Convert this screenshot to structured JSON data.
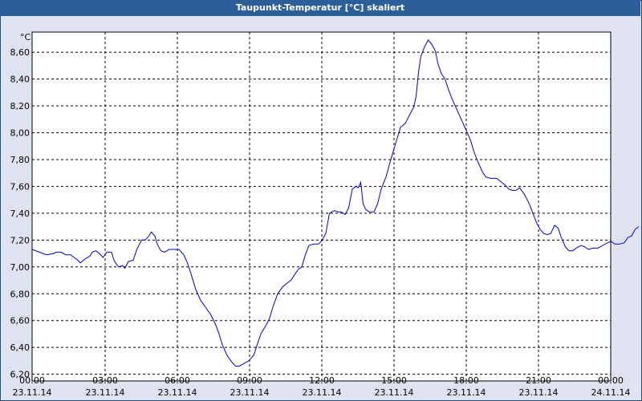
{
  "window": {
    "title": "Taupunkt-Temperatur [°C] skaliert"
  },
  "chart_data": {
    "type": "line",
    "title": "Taupunkt-Temperatur [°C] skaliert",
    "ylabel": "°C",
    "xlabel": "",
    "ylim": [
      6.15,
      8.75
    ],
    "xlim": [
      0,
      24
    ],
    "grid": true,
    "line_color": "#0000cc",
    "y_ticks": [
      "6,20",
      "6,40",
      "6,60",
      "6,80",
      "7,00",
      "7,20",
      "7,40",
      "7,60",
      "7,80",
      "8,00",
      "8,20",
      "8,40",
      "8,60"
    ],
    "y_tick_values": [
      6.2,
      6.4,
      6.6,
      6.8,
      7.0,
      7.2,
      7.4,
      7.6,
      7.8,
      8.0,
      8.2,
      8.4,
      8.6
    ],
    "x_ticks": [
      {
        "time": "00:00",
        "date": "23.11.14",
        "h": 0
      },
      {
        "time": "03:00",
        "date": "23.11.14",
        "h": 3
      },
      {
        "time": "06:00",
        "date": "23.11.14",
        "h": 6
      },
      {
        "time": "09:00",
        "date": "23.11.14",
        "h": 9
      },
      {
        "time": "12:00",
        "date": "23.11.14",
        "h": 12
      },
      {
        "time": "15:00",
        "date": "23.11.14",
        "h": 15
      },
      {
        "time": "18:00",
        "date": "23.11.14",
        "h": 18
      },
      {
        "time": "21:00",
        "date": "23.11.14",
        "h": 21
      },
      {
        "time": "00:00",
        "date": "24.11.14",
        "h": 24
      }
    ],
    "series": [
      {
        "points": [
          [
            0.0,
            7.13
          ],
          [
            0.3,
            7.11
          ],
          [
            0.6,
            7.09
          ],
          [
            0.9,
            7.1
          ],
          [
            1.0,
            7.11
          ],
          [
            1.2,
            7.11
          ],
          [
            1.4,
            7.09
          ],
          [
            1.6,
            7.09
          ],
          [
            1.75,
            7.07
          ],
          [
            1.9,
            7.05
          ],
          [
            2.0,
            7.03
          ],
          [
            2.2,
            7.06
          ],
          [
            2.4,
            7.08
          ],
          [
            2.5,
            7.11
          ],
          [
            2.65,
            7.12
          ],
          [
            2.8,
            7.1
          ],
          [
            2.95,
            7.07
          ],
          [
            3.1,
            7.11
          ],
          [
            3.3,
            7.11
          ],
          [
            3.4,
            7.05
          ],
          [
            3.5,
            7.02
          ],
          [
            3.6,
            7.0
          ],
          [
            3.75,
            7.01
          ],
          [
            3.85,
            6.99
          ],
          [
            4.0,
            7.04
          ],
          [
            4.2,
            7.05
          ],
          [
            4.35,
            7.13
          ],
          [
            4.55,
            7.2
          ],
          [
            4.7,
            7.2
          ],
          [
            4.85,
            7.23
          ],
          [
            4.95,
            7.26
          ],
          [
            5.1,
            7.23
          ],
          [
            5.2,
            7.17
          ],
          [
            5.35,
            7.12
          ],
          [
            5.5,
            7.11
          ],
          [
            5.7,
            7.13
          ],
          [
            5.9,
            7.13
          ],
          [
            6.1,
            7.13
          ],
          [
            6.3,
            7.09
          ],
          [
            6.45,
            7.03
          ],
          [
            6.6,
            6.95
          ],
          [
            6.8,
            6.83
          ],
          [
            7.0,
            6.75
          ],
          [
            7.2,
            6.7
          ],
          [
            7.4,
            6.65
          ],
          [
            7.6,
            6.58
          ],
          [
            7.75,
            6.51
          ],
          [
            7.9,
            6.42
          ],
          [
            8.1,
            6.34
          ],
          [
            8.3,
            6.29
          ],
          [
            8.45,
            6.26
          ],
          [
            8.6,
            6.26
          ],
          [
            8.8,
            6.28
          ],
          [
            9.0,
            6.3
          ],
          [
            9.2,
            6.34
          ],
          [
            9.35,
            6.42
          ],
          [
            9.5,
            6.5
          ],
          [
            9.7,
            6.56
          ],
          [
            9.85,
            6.61
          ],
          [
            10.0,
            6.7
          ],
          [
            10.2,
            6.8
          ],
          [
            10.4,
            6.85
          ],
          [
            10.6,
            6.88
          ],
          [
            10.75,
            6.9
          ],
          [
            10.9,
            6.94
          ],
          [
            11.05,
            6.98
          ],
          [
            11.2,
            7.0
          ],
          [
            11.35,
            7.09
          ],
          [
            11.5,
            7.16
          ],
          [
            11.7,
            7.17
          ],
          [
            11.9,
            7.17
          ],
          [
            12.05,
            7.2
          ],
          [
            12.2,
            7.25
          ],
          [
            12.35,
            7.4
          ],
          [
            12.55,
            7.42
          ],
          [
            12.7,
            7.41
          ],
          [
            12.85,
            7.41
          ],
          [
            13.0,
            7.39
          ],
          [
            13.15,
            7.44
          ],
          [
            13.3,
            7.58
          ],
          [
            13.45,
            7.6
          ],
          [
            13.55,
            7.59
          ],
          [
            13.65,
            7.63
          ],
          [
            13.75,
            7.47
          ],
          [
            13.85,
            7.43
          ],
          [
            14.0,
            7.41
          ],
          [
            14.2,
            7.41
          ],
          [
            14.35,
            7.47
          ],
          [
            14.5,
            7.58
          ],
          [
            14.7,
            7.67
          ],
          [
            14.9,
            7.8
          ],
          [
            15.1,
            7.92
          ],
          [
            15.3,
            8.04
          ],
          [
            15.5,
            8.07
          ],
          [
            15.7,
            8.14
          ],
          [
            15.85,
            8.19
          ],
          [
            15.95,
            8.27
          ],
          [
            16.05,
            8.45
          ],
          [
            16.15,
            8.57
          ],
          [
            16.3,
            8.64
          ],
          [
            16.45,
            8.69
          ],
          [
            16.6,
            8.66
          ],
          [
            16.75,
            8.61
          ],
          [
            16.85,
            8.52
          ],
          [
            17.0,
            8.44
          ],
          [
            17.15,
            8.4
          ],
          [
            17.3,
            8.32
          ],
          [
            17.45,
            8.25
          ],
          [
            17.6,
            8.19
          ],
          [
            17.8,
            8.11
          ],
          [
            18.0,
            8.03
          ],
          [
            18.2,
            7.95
          ],
          [
            18.35,
            7.86
          ],
          [
            18.5,
            7.79
          ],
          [
            18.7,
            7.71
          ],
          [
            18.85,
            7.67
          ],
          [
            19.05,
            7.66
          ],
          [
            19.3,
            7.66
          ],
          [
            19.5,
            7.63
          ],
          [
            19.65,
            7.61
          ],
          [
            19.8,
            7.58
          ],
          [
            19.95,
            7.57
          ],
          [
            20.1,
            7.57
          ],
          [
            20.25,
            7.59
          ],
          [
            20.45,
            7.54
          ],
          [
            20.65,
            7.47
          ],
          [
            20.8,
            7.4
          ],
          [
            20.95,
            7.33
          ],
          [
            21.1,
            7.28
          ],
          [
            21.25,
            7.25
          ],
          [
            21.4,
            7.24
          ],
          [
            21.55,
            7.25
          ],
          [
            21.7,
            7.31
          ],
          [
            21.85,
            7.29
          ],
          [
            22.0,
            7.21
          ],
          [
            22.15,
            7.15
          ],
          [
            22.3,
            7.12
          ],
          [
            22.45,
            7.12
          ],
          [
            22.6,
            7.14
          ],
          [
            22.8,
            7.16
          ],
          [
            22.95,
            7.15
          ],
          [
            23.1,
            7.13
          ],
          [
            23.3,
            7.14
          ],
          [
            23.5,
            7.14
          ],
          [
            23.7,
            7.16
          ],
          [
            23.9,
            7.18
          ],
          [
            24.05,
            7.19
          ],
          [
            24.2,
            7.17
          ],
          [
            24.4,
            7.17
          ],
          [
            24.6,
            7.18
          ],
          [
            24.75,
            7.22
          ],
          [
            24.9,
            7.23
          ],
          [
            25.05,
            7.28
          ],
          [
            25.2,
            7.3
          ]
        ]
      }
    ]
  }
}
